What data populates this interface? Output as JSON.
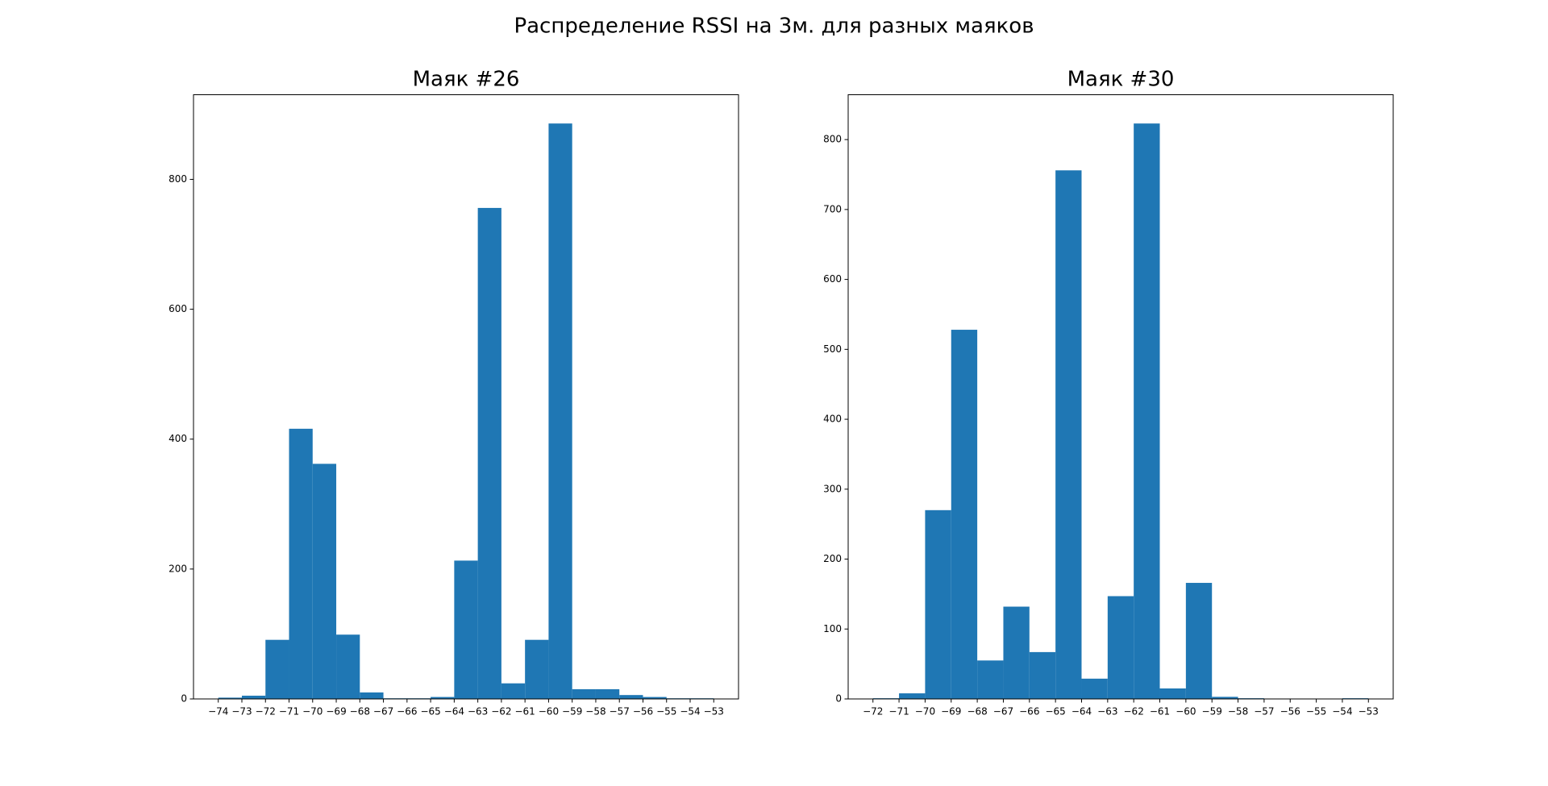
{
  "title": "Распределение RSSI на 3м. для разных маяков",
  "chart_data": [
    {
      "type": "histogram",
      "title": "Маяк #26",
      "color": "#1f77b4",
      "bins": [
        -74,
        -73,
        -72,
        -71,
        -70,
        -69,
        -68,
        -67,
        -66,
        -65,
        -64,
        -63,
        -62,
        -61,
        -60,
        -59,
        -58,
        -57,
        -56,
        -55,
        -54,
        -53
      ],
      "values": [
        2,
        5,
        91,
        416,
        362,
        99,
        10,
        1,
        1,
        3,
        213,
        756,
        24,
        91,
        886,
        15,
        15,
        6,
        3,
        1,
        1
      ],
      "xlim": [
        -75.05,
        -51.95
      ],
      "ylim": [
        0,
        930.3
      ],
      "xticks": [
        {
          "value": -74,
          "label": "−74"
        },
        {
          "value": -73,
          "label": "−73"
        },
        {
          "value": -72,
          "label": "−72"
        },
        {
          "value": -71,
          "label": "−71"
        },
        {
          "value": -70,
          "label": "−70"
        },
        {
          "value": -69,
          "label": "−69"
        },
        {
          "value": -68,
          "label": "−68"
        },
        {
          "value": -67,
          "label": "−67"
        },
        {
          "value": -66,
          "label": "−66"
        },
        {
          "value": -65,
          "label": "−65"
        },
        {
          "value": -64,
          "label": "−64"
        },
        {
          "value": -63,
          "label": "−63"
        },
        {
          "value": -62,
          "label": "−62"
        },
        {
          "value": -61,
          "label": "−61"
        },
        {
          "value": -60,
          "label": "−60"
        },
        {
          "value": -59,
          "label": "−59"
        },
        {
          "value": -58,
          "label": "−58"
        },
        {
          "value": -57,
          "label": "−57"
        },
        {
          "value": -56,
          "label": "−56"
        },
        {
          "value": -55,
          "label": "−55"
        },
        {
          "value": -54,
          "label": "−54"
        },
        {
          "value": -53,
          "label": "−53"
        }
      ],
      "yticks": [
        0,
        200,
        400,
        600,
        800
      ]
    },
    {
      "type": "histogram",
      "title": "Маяк #30",
      "color": "#1f77b4",
      "bins": [
        -72,
        -71,
        -70,
        -69,
        -68,
        -67,
        -66,
        -65,
        -64,
        -63,
        -62,
        -61,
        -60,
        -59,
        -58,
        -57,
        -56,
        -55,
        -54,
        -53
      ],
      "values": [
        1,
        8,
        270,
        528,
        55,
        132,
        67,
        756,
        29,
        147,
        823,
        15,
        166,
        3,
        1,
        0,
        0,
        0,
        1
      ],
      "xlim": [
        -72.95,
        -52.05
      ],
      "ylim": [
        0,
        864.15
      ],
      "xticks": [
        {
          "value": -72,
          "label": "−72"
        },
        {
          "value": -71,
          "label": "−71"
        },
        {
          "value": -70,
          "label": "−70"
        },
        {
          "value": -69,
          "label": "−69"
        },
        {
          "value": -68,
          "label": "−68"
        },
        {
          "value": -67,
          "label": "−67"
        },
        {
          "value": -66,
          "label": "−66"
        },
        {
          "value": -65,
          "label": "−65"
        },
        {
          "value": -64,
          "label": "−64"
        },
        {
          "value": -63,
          "label": "−63"
        },
        {
          "value": -62,
          "label": "−62"
        },
        {
          "value": -61,
          "label": "−61"
        },
        {
          "value": -60,
          "label": "−60"
        },
        {
          "value": -59,
          "label": "−59"
        },
        {
          "value": -58,
          "label": "−58"
        },
        {
          "value": -57,
          "label": "−57"
        },
        {
          "value": -56,
          "label": "−56"
        },
        {
          "value": -55,
          "label": "−55"
        },
        {
          "value": -54,
          "label": "−54"
        },
        {
          "value": -53,
          "label": "−53"
        }
      ],
      "yticks": [
        0,
        100,
        200,
        300,
        400,
        500,
        600,
        700,
        800
      ]
    }
  ]
}
